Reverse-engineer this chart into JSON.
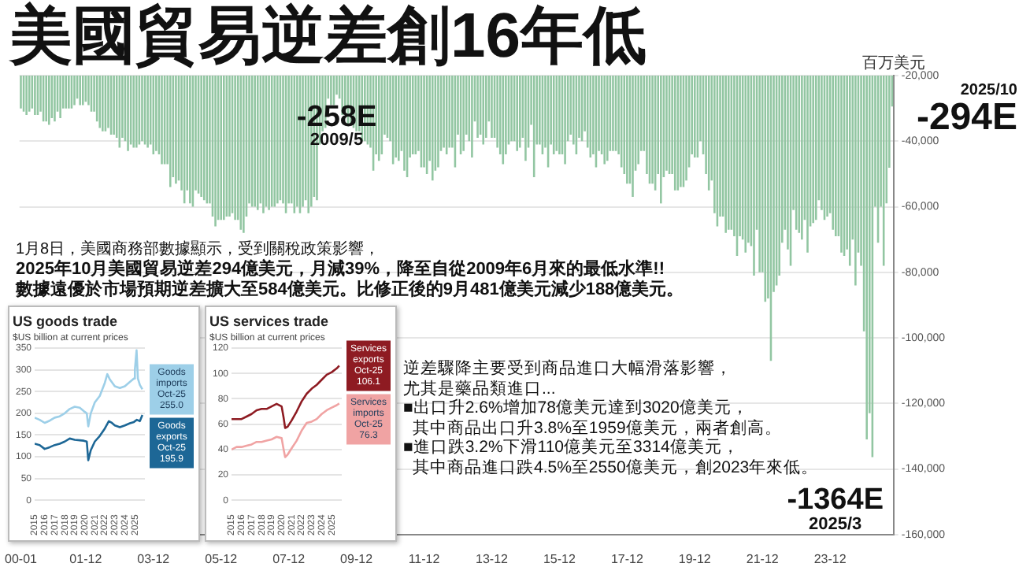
{
  "chart_data": [
    {
      "type": "bar",
      "title": "美國貿易逆差創16年低",
      "ylabel": "百万美元",
      "color": "#92c6a2",
      "grid": "y",
      "legend": false,
      "categories": [
        "00-01",
        null,
        null,
        null,
        null,
        null,
        null,
        null,
        null,
        null,
        null,
        null,
        null,
        null,
        null,
        null,
        null,
        null,
        null,
        null,
        null,
        null,
        null,
        "01-12",
        null,
        null,
        null,
        null,
        null,
        null,
        null,
        null,
        null,
        null,
        null,
        null,
        null,
        null,
        null,
        null,
        null,
        null,
        null,
        null,
        null,
        null,
        null,
        "03-12",
        null,
        null,
        null,
        null,
        null,
        null,
        null,
        null,
        null,
        null,
        null,
        null,
        null,
        null,
        null,
        null,
        null,
        null,
        null,
        null,
        null,
        null,
        null,
        "05-12",
        null,
        null,
        null,
        null,
        null,
        null,
        null,
        null,
        null,
        null,
        null,
        null,
        null,
        null,
        null,
        null,
        null,
        null,
        null,
        null,
        null,
        null,
        null,
        "07-12",
        null,
        null,
        null,
        null,
        null,
        null,
        null,
        null,
        null,
        null,
        null,
        null,
        null,
        null,
        null,
        null,
        null,
        null,
        null,
        null,
        null,
        null,
        null,
        "09-12",
        null,
        null,
        null,
        null,
        null,
        null,
        null,
        null,
        null,
        null,
        null,
        null,
        null,
        null,
        null,
        null,
        null,
        null,
        null,
        null,
        null,
        null,
        null,
        "11-12",
        null,
        null,
        null,
        null,
        null,
        null,
        null,
        null,
        null,
        null,
        null,
        null,
        null,
        null,
        null,
        null,
        null,
        null,
        null,
        null,
        null,
        null,
        null,
        "13-12",
        null,
        null,
        null,
        null,
        null,
        null,
        null,
        null,
        null,
        null,
        null,
        null,
        null,
        null,
        null,
        null,
        null,
        null,
        null,
        null,
        null,
        null,
        null,
        "15-12",
        null,
        null,
        null,
        null,
        null,
        null,
        null,
        null,
        null,
        null,
        null,
        null,
        null,
        null,
        null,
        null,
        null,
        null,
        null,
        null,
        null,
        null,
        null,
        "17-12",
        null,
        null,
        null,
        null,
        null,
        null,
        null,
        null,
        null,
        null,
        null,
        null,
        null,
        null,
        null,
        null,
        null,
        null,
        null,
        null,
        null,
        null,
        null,
        "19-12",
        null,
        null,
        null,
        null,
        null,
        null,
        null,
        null,
        null,
        null,
        null,
        null,
        null,
        null,
        null,
        null,
        null,
        null,
        null,
        null,
        null,
        null,
        null,
        "21-12",
        null,
        null,
        null,
        null,
        null,
        null,
        null,
        null,
        null,
        null,
        null,
        null,
        null,
        null,
        null,
        null,
        null,
        null,
        null,
        null,
        null,
        null,
        null,
        "23-12",
        null,
        null,
        null,
        null,
        null,
        null,
        null,
        null,
        null,
        null,
        null,
        null,
        null,
        null,
        null,
        null,
        null,
        null,
        null,
        null,
        null,
        null
      ],
      "values": [
        -30000,
        -31000,
        -32000,
        -31000,
        -30000,
        -32000,
        -32000,
        -31000,
        -34000,
        -34000,
        -35000,
        -33000,
        -34000,
        -31000,
        -33000,
        -30000,
        -30000,
        -30000,
        -30000,
        -29000,
        -27000,
        -29000,
        -29000,
        -28000,
        -29000,
        -31000,
        -31000,
        -34000,
        -36000,
        -37000,
        -37000,
        -36000,
        -38000,
        -38000,
        -39000,
        -42000,
        -39000,
        -40000,
        -43000,
        -41000,
        -42000,
        -42000,
        -41000,
        -40000,
        -41000,
        -42000,
        -41000,
        -44000,
        -43000,
        -44000,
        -47000,
        -47000,
        -47000,
        -54000,
        -51000,
        -53000,
        -52000,
        -55000,
        -59000,
        -55000,
        -59000,
        -60000,
        -55000,
        -56000,
        -57000,
        -58000,
        -59000,
        -59000,
        -63000,
        -66000,
        -64000,
        -64000,
        -64000,
        -63000,
        -63000,
        -62000,
        -64000,
        -64000,
        -67000,
        -68000,
        -63000,
        -59000,
        -60000,
        -60000,
        -61000,
        -59000,
        -62000,
        -60000,
        -61000,
        -60000,
        -60000,
        -59000,
        -58000,
        -59000,
        -62000,
        -59000,
        -59000,
        -62000,
        -60000,
        -62000,
        -60000,
        -58000,
        -62000,
        -60000,
        -57000,
        -58000,
        -41000,
        -37000,
        -36000,
        -27000,
        -29000,
        -29000,
        -25800,
        -27000,
        -32000,
        -31000,
        -35000,
        -35000,
        -36000,
        -37000,
        -37000,
        -40000,
        -40000,
        -41000,
        -42000,
        -49000,
        -44000,
        -46000,
        -44000,
        -38000,
        -39000,
        -40000,
        -47000,
        -45000,
        -46000,
        -43000,
        -49000,
        -51000,
        -45000,
        -44000,
        -44000,
        -43000,
        -48000,
        -48000,
        -50000,
        -46000,
        -52000,
        -49000,
        -48000,
        -43000,
        -42000,
        -44000,
        -42000,
        -42000,
        -48000,
        -38000,
        -44000,
        -43000,
        -38000,
        -40000,
        -45000,
        -34000,
        -39000,
        -38000,
        -41000,
        -39000,
        -34000,
        -39000,
        -39000,
        -42000,
        -44000,
        -47000,
        -44000,
        -41000,
        -40000,
        -40000,
        -43000,
        -42000,
        -39000,
        -46000,
        -42000,
        -35000,
        -51000,
        -41000,
        -41000,
        -44000,
        -42000,
        -48000,
        -41000,
        -44000,
        -43000,
        -44000,
        -44000,
        -47000,
        -40000,
        -38000,
        -41000,
        -44000,
        -39000,
        -40000,
        -37000,
        -42000,
        -45000,
        -44000,
        -48000,
        -43000,
        -44000,
        -47000,
        -46000,
        -43000,
        -43000,
        -43000,
        -44000,
        -48000,
        -50000,
        -53000,
        -53000,
        -57000,
        -49000,
        -47000,
        -43000,
        -43000,
        -50000,
        -53000,
        -53000,
        -55000,
        -50000,
        -59000,
        -51000,
        -49000,
        -50000,
        -50000,
        -55000,
        -55000,
        -54000,
        -54000,
        -52000,
        -48000,
        -44000,
        -45000,
        -45000,
        -40000,
        -44000,
        -50000,
        -55000,
        -52000,
        -62000,
        -66000,
        -63000,
        -63000,
        -68000,
        -67000,
        -67000,
        -69000,
        -75000,
        -69000,
        -70000,
        -74000,
        -71000,
        -72000,
        -81000,
        -67000,
        -80000,
        -80000,
        -89000,
        -88000,
        -107000,
        -86000,
        -84000,
        -81000,
        -71000,
        -67000,
        -73000,
        -78000,
        -61000,
        -67000,
        -68000,
        -70000,
        -64000,
        -74000,
        -66000,
        -65000,
        -64000,
        -58000,
        -61000,
        -64000,
        -63000,
        -62000,
        -67000,
        -69000,
        -69000,
        -74000,
        -75000,
        -73000,
        -78000,
        -70000,
        -84000,
        -74000,
        -78000,
        -98000,
        -131000,
        -123000,
        -136400,
        -60000,
        -71000,
        -60000,
        -78000,
        -59000,
        -48100,
        -29400
      ],
      "ylim": [
        -160000,
        -20000
      ],
      "yticks": [
        {
          "value": -20000,
          "label": "-20,000"
        },
        {
          "value": -40000,
          "label": "-40,000"
        },
        {
          "value": -60000,
          "label": "-60,000"
        },
        {
          "value": -80000,
          "label": "-80,000"
        },
        {
          "value": -100000,
          "label": "-100,000"
        },
        {
          "value": -120000,
          "label": "-120,000"
        },
        {
          "value": -140000,
          "label": "-140,000"
        },
        {
          "value": -160000,
          "label": "-160,000"
        }
      ],
      "annotations": [
        "1月8日，美國商務部數據顯示，受到關稅政策影響，",
        "2025年10月美國貿易逆差294億美元，月減39%，降至自從2009年6月來的最低水準!!",
        "數據遠優於市場預期逆差擴大至584億美元。比修正後的9月481億美元減少188億美元。",
        "逆差驟降主要受到商品進口大幅滑落影響，",
        "尤其是藥品類進口...",
        "■出口升2.6%增加78億美元達到3020億美元，",
        "其中商品出口升3.8%至1959億美元，兩者創高。",
        "■進口跌3.2%下滑110億美元至3314億美元，",
        "其中商品進口跌4.5%至2550億美元，創2023年來低。",
        {
          "text": "-258E",
          "y": -25800
        },
        {
          "text": "2009/5",
          "y": -25800
        },
        "2025/10",
        "-294E",
        "-1364E",
        "2025/3"
      ]
    },
    {
      "type": "line",
      "title": "US goods trade",
      "subtitle": "$US billion at current prices",
      "grid": "y",
      "legend": false,
      "series": [
        {
          "color": "#9dcfe8",
          "x": [
            2015,
            2015.5,
            2016,
            2016.5,
            2017,
            2017.5,
            2018,
            2018.5,
            2019,
            2019.5,
            2019.9,
            2020.2,
            2020.35,
            2020.6,
            2021,
            2021.5,
            2022,
            2022.25,
            2022.5,
            2023,
            2023.5,
            2024,
            2024.5,
            2024.9,
            2025,
            2025.17,
            2025.3,
            2025.5,
            2025.75
          ],
          "values": [
            190,
            185,
            178,
            183,
            190,
            193,
            200,
            210,
            215,
            213,
            205,
            200,
            170,
            200,
            225,
            240,
            270,
            290,
            278,
            262,
            258,
            262,
            272,
            280,
            300,
            345,
            280,
            265,
            255.0
          ]
        },
        {
          "color": "#1d6796",
          "x": [
            2015,
            2015.5,
            2016,
            2016.5,
            2017,
            2017.5,
            2018,
            2018.5,
            2019,
            2019.5,
            2019.9,
            2020.2,
            2020.35,
            2020.6,
            2021,
            2021.5,
            2022,
            2022.4,
            2022.7,
            2023,
            2023.5,
            2024,
            2024.5,
            2024.9,
            2025.2,
            2025.5,
            2025.75
          ],
          "values": [
            130,
            127,
            118,
            122,
            127,
            130,
            135,
            142,
            139,
            138,
            137,
            135,
            92,
            115,
            135,
            148,
            165,
            182,
            178,
            172,
            168,
            172,
            177,
            180,
            185,
            182,
            195.9
          ]
        }
      ],
      "xlim": [
        2015,
        2026
      ],
      "xticks": [
        2015,
        2016,
        2017,
        2018,
        2019,
        2020,
        2021,
        2022,
        2023,
        2024,
        2025
      ],
      "ylim": [
        0,
        350
      ],
      "yticks": [
        0,
        50,
        100,
        150,
        200,
        250,
        300,
        350
      ],
      "annotations": [
        "Goods imports Oct-25 255.0",
        "Goods exports Oct-25 195.9"
      ]
    },
    {
      "type": "line",
      "title": "US services trade",
      "subtitle": "$US billion at current prices",
      "grid": "y",
      "legend": false,
      "series": [
        {
          "color": "#8e1b22",
          "x": [
            2015,
            2015.5,
            2016,
            2016.5,
            2017,
            2017.5,
            2018,
            2018.5,
            2019,
            2019.5,
            2020,
            2020.2,
            2020.35,
            2020.6,
            2021,
            2021.5,
            2022,
            2022.5,
            2023,
            2023.5,
            2024,
            2024.5,
            2025,
            2025.5,
            2025.75
          ],
          "values": [
            64,
            64,
            64,
            66,
            68,
            71,
            72,
            72,
            74,
            76,
            74,
            65,
            57,
            58,
            63,
            70,
            78,
            84,
            88,
            91,
            95,
            99,
            101,
            104,
            106.1
          ]
        },
        {
          "color": "#f0a3a3",
          "x": [
            2015,
            2015.5,
            2016,
            2016.5,
            2017,
            2017.5,
            2018,
            2018.5,
            2019,
            2019.5,
            2020,
            2020.2,
            2020.35,
            2020.6,
            2021,
            2021.5,
            2022,
            2022.5,
            2023,
            2023.5,
            2024,
            2024.5,
            2025,
            2025.5,
            2025.75
          ],
          "values": [
            40,
            42,
            42,
            43,
            44,
            46,
            46,
            47,
            48,
            50,
            49,
            40,
            34,
            36,
            41,
            47,
            55,
            61,
            62,
            64,
            68,
            71,
            73,
            75,
            76.3
          ]
        }
      ],
      "xlim": [
        2015,
        2026
      ],
      "xticks": [
        2015,
        2016,
        2017,
        2018,
        2019,
        2020,
        2021,
        2022,
        2023,
        2024,
        2025
      ],
      "ylim": [
        0,
        120
      ],
      "yticks": [
        0,
        20,
        40,
        60,
        80,
        100,
        120
      ],
      "annotations": [
        "Services exports Oct-25 106.1",
        "Services imports Oct-25 76.3"
      ]
    }
  ]
}
